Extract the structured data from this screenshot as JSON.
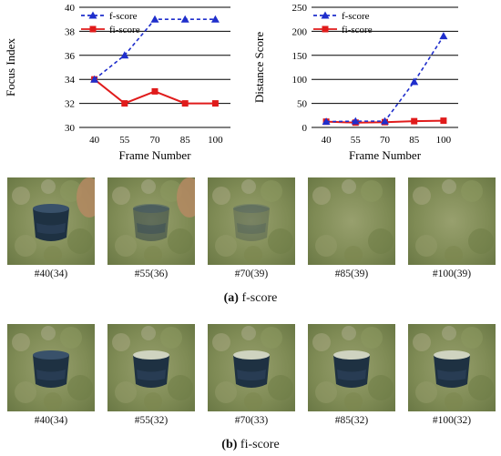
{
  "colors": {
    "f_score": "#1f2ecc",
    "fi_score": "#e01b1b",
    "grid": "#000000"
  },
  "chart_data": [
    {
      "type": "line",
      "xlabel": "Frame Number",
      "ylabel": "Focus Index",
      "x": [
        40,
        55,
        70,
        85,
        100
      ],
      "ylim": [
        30,
        40
      ],
      "yticks": [
        30,
        32,
        34,
        36,
        38,
        40
      ],
      "grid": true,
      "legend": "top-left",
      "series": [
        {
          "name": "f-score",
          "values": [
            34,
            36,
            39,
            39,
            39
          ],
          "marker": "triangle",
          "style": "dashed",
          "color": "#1f2ecc"
        },
        {
          "name": "fi-score",
          "values": [
            34,
            32,
            33,
            32,
            32
          ],
          "marker": "square",
          "style": "solid",
          "color": "#e01b1b"
        }
      ]
    },
    {
      "type": "line",
      "xlabel": "Frame Number",
      "ylabel": "Distance Score",
      "x": [
        40,
        55,
        70,
        85,
        100
      ],
      "ylim": [
        0,
        250
      ],
      "yticks": [
        0,
        50,
        100,
        150,
        200,
        250
      ],
      "grid": true,
      "legend": "top-left",
      "series": [
        {
          "name": "f-score",
          "values": [
            12,
            13,
            13,
            95,
            190
          ],
          "marker": "triangle",
          "style": "dashed",
          "color": "#1f2ecc"
        },
        {
          "name": "fi-score",
          "values": [
            12,
            10,
            11,
            13,
            14
          ],
          "marker": "square",
          "style": "solid",
          "color": "#e01b1b"
        }
      ]
    }
  ],
  "row_a": {
    "labels": [
      "#40(34)",
      "#55(36)",
      "#70(39)",
      "#85(39)",
      "#100(39)"
    ],
    "cup_visible": [
      1,
      0.45,
      0.25,
      0,
      0
    ],
    "caption_letter": "(a)",
    "caption_text": "f-score"
  },
  "row_b": {
    "labels": [
      "#40(34)",
      "#55(32)",
      "#70(33)",
      "#85(32)",
      "#100(32)"
    ],
    "cup_visible": [
      1,
      1,
      1,
      1,
      1
    ],
    "caption_letter": "(b)",
    "caption_text": "fi-score"
  }
}
